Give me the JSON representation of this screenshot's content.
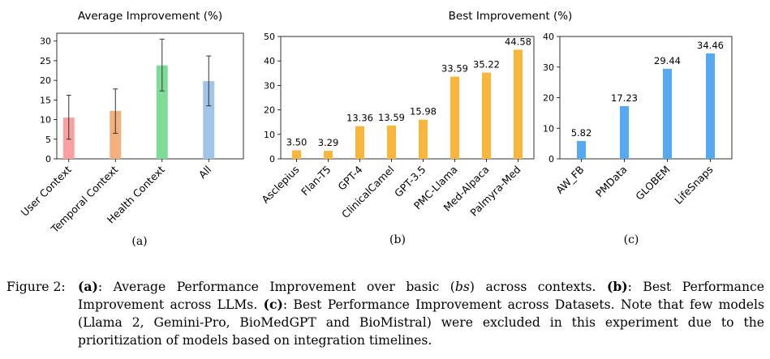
{
  "colors": {
    "user_context": "#f8a1a0",
    "temporal_context": "#f1b07e",
    "health_context": "#7fdb95",
    "all": "#a1c4e7",
    "llm_bar": "#f9b53c",
    "dataset_bar": "#56a8f1",
    "axis": "#000000",
    "errorbar": "#333333"
  },
  "chart_data": [
    {
      "id": "a",
      "type": "bar",
      "title": "Average Improvement (%)",
      "panel_label": "(a)",
      "categories": [
        "User Context",
        "Temporal Context",
        "Health Context",
        "All"
      ],
      "values": [
        10.5,
        12.2,
        23.8,
        19.8
      ],
      "error_low": [
        5.0,
        6.5,
        17.3,
        13.5
      ],
      "error_high": [
        16.2,
        17.8,
        30.5,
        26.2
      ],
      "color_keys": [
        "user_context",
        "temporal_context",
        "health_context",
        "all"
      ],
      "ylim": [
        0,
        32
      ],
      "yticks": [
        0,
        5,
        10,
        15,
        20,
        25,
        30
      ],
      "xlabel": "",
      "ylabel": "",
      "grid": false
    },
    {
      "id": "b",
      "type": "bar",
      "title": "Best Improvement (%)",
      "panel_label": "(b)",
      "categories": [
        "Asclepius",
        "Flan-T5",
        "GPT-4",
        "ClinicalCamel",
        "GPT-3.5",
        "PMC-Llama",
        "Med-Alpaca",
        "Palmyra-Med"
      ],
      "values": [
        3.5,
        3.29,
        13.36,
        13.59,
        15.98,
        33.59,
        35.22,
        44.58
      ],
      "data_labels": [
        "3.50",
        "3.29",
        "13.36",
        "13.59",
        "15.98",
        "33.59",
        "35.22",
        "44.58"
      ],
      "color_key": "llm_bar",
      "ylim": [
        0,
        50
      ],
      "yticks": [
        0,
        10,
        20,
        30,
        40,
        50
      ],
      "xlabel": "",
      "ylabel": "",
      "grid": false
    },
    {
      "id": "c",
      "type": "bar",
      "title": "",
      "panel_label": "(c)",
      "categories": [
        "AW_FB",
        "PMData",
        "GLOBEM",
        "LifeSnaps"
      ],
      "values": [
        5.82,
        17.23,
        29.44,
        34.46
      ],
      "data_labels": [
        "5.82",
        "17.23",
        "29.44",
        "34.46"
      ],
      "color_key": "dataset_bar",
      "ylim": [
        0,
        40
      ],
      "yticks": [
        0,
        10,
        20,
        30,
        40
      ],
      "xlabel": "",
      "ylabel": "",
      "grid": false
    }
  ],
  "caption": {
    "label": "Figure 2:",
    "a_marker": "(a)",
    "a_text": ": Average Performance Improvement over basic (",
    "bs": "bs",
    "a_text_end": ") across contexts.",
    "b_marker": "(b)",
    "b_text": ": Best Performance Improvement across LLMs.",
    "c_marker": "(c)",
    "c_text": ": Best Performance Improvement across Datasets. Note that few models (Llama 2, Gemini-Pro, BioMedGPT and BioMistral) were excluded in this experiment due to the prioritization of models based on integration timelines."
  }
}
